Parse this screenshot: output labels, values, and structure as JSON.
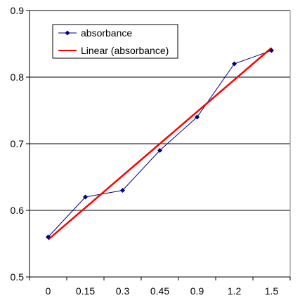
{
  "chart_data": {
    "type": "line",
    "categories": [
      "0",
      "0.15",
      "0.3",
      "0.45",
      "0.9",
      "1.2",
      "1.5"
    ],
    "ylim": [
      0.5,
      0.9
    ],
    "yticks": [
      "0.5",
      "0.6",
      "0.7",
      "0.8",
      "0.9"
    ],
    "grid": "horizontal",
    "legend_placement": "top-left",
    "series": [
      {
        "name": "absorbance",
        "values": [
          0.56,
          0.62,
          0.63,
          0.69,
          0.74,
          0.82,
          0.84
        ],
        "color": "#000080",
        "marker": "diamond"
      },
      {
        "name": "Linear (absorbance)",
        "type": "trendline",
        "values": [
          0.556,
          0.604,
          0.652,
          0.7,
          0.748,
          0.796,
          0.844
        ],
        "color": "#ff0000"
      }
    ]
  }
}
